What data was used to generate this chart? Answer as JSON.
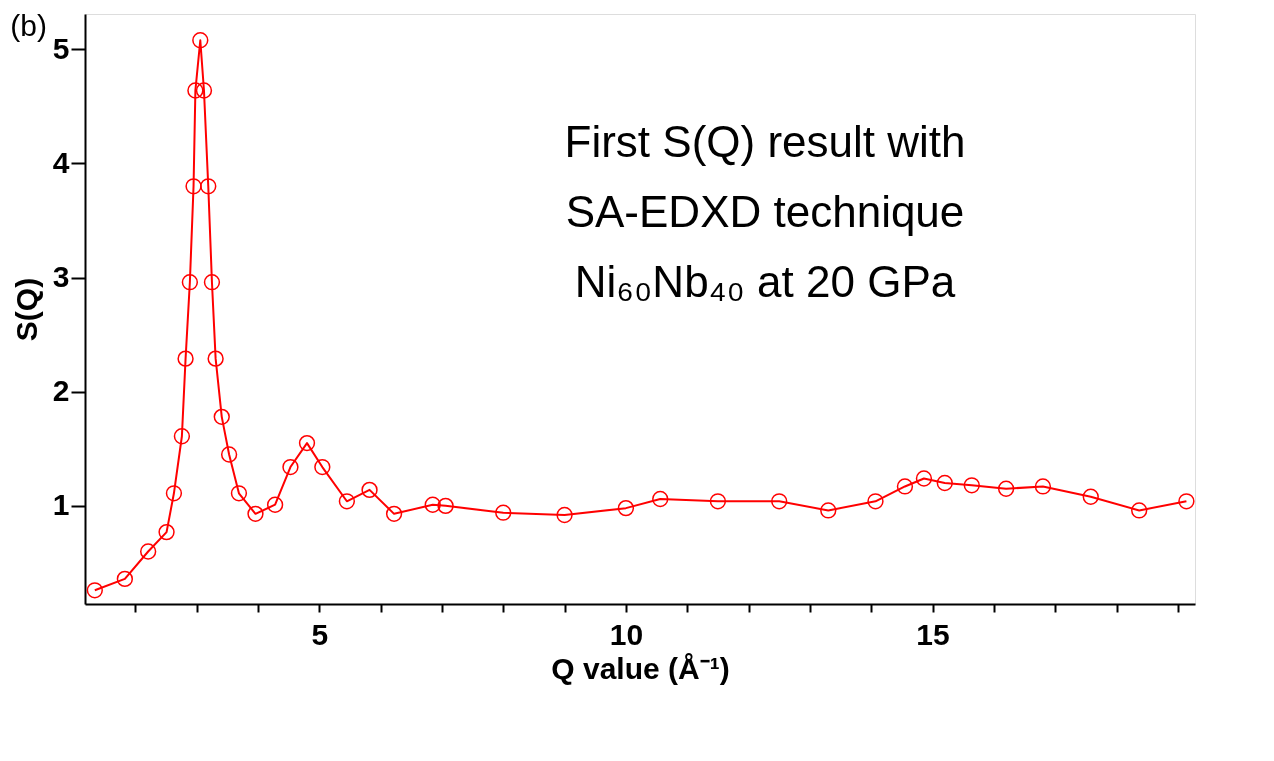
{
  "chart_data": {
    "type": "line",
    "marker": "circle",
    "line_style": "solid",
    "grid": false,
    "xlabel": "Q value (Å⁻¹)",
    "ylabel": "S(Q)",
    "annotations": [
      "(b)",
      "First S(Q) result with",
      "SA-EDXD technique",
      "Ni₆₀Nb₄₀ at 20 GPa"
    ],
    "xlim": [
      1.18,
      19.28
    ],
    "ylim": [
      0.14,
      5.31
    ],
    "xticks": [
      {
        "value": 2,
        "label": null
      },
      {
        "value": 3,
        "label": null
      },
      {
        "value": 4,
        "label": null
      },
      5,
      {
        "value": 6,
        "label": null
      },
      {
        "value": 7,
        "label": null
      },
      {
        "value": 8,
        "label": null
      },
      {
        "value": 9,
        "label": null
      },
      10,
      {
        "value": 11,
        "label": null
      },
      {
        "value": 12,
        "label": null
      },
      {
        "value": 13,
        "label": null
      },
      {
        "value": 14,
        "label": null
      },
      15,
      {
        "value": 16,
        "label": null
      },
      {
        "value": 17,
        "label": null
      },
      {
        "value": 18,
        "label": null
      },
      {
        "value": 19,
        "label": null
      }
    ],
    "yticks": [
      1,
      2,
      3,
      4,
      5
    ],
    "series": [
      {
        "color": "#ff0000",
        "x": [
          1.34,
          1.83,
          2.21,
          2.51,
          2.63,
          2.76,
          2.82,
          2.89,
          2.95,
          2.98,
          3.06,
          3.12,
          3.19,
          3.25,
          3.31,
          3.41,
          3.53,
          3.69,
          3.96,
          4.28,
          4.53,
          4.8,
          5.05,
          5.45,
          5.82,
          6.22,
          6.85,
          7.06,
          8.0,
          9.0,
          10.0,
          10.56,
          11.5,
          12.5,
          13.3,
          14.07,
          14.55,
          14.86,
          15.2,
          15.64,
          16.2,
          16.8,
          17.58,
          18.37,
          19.14
        ],
        "values": [
          0.26,
          0.36,
          0.6,
          0.77,
          1.11,
          1.61,
          2.29,
          2.96,
          3.8,
          4.64,
          5.08,
          4.64,
          3.8,
          2.96,
          2.29,
          1.78,
          1.45,
          1.11,
          0.93,
          1.01,
          1.34,
          1.55,
          1.34,
          1.04,
          1.14,
          0.93,
          1.01,
          1.0,
          0.94,
          0.92,
          0.98,
          1.06,
          1.04,
          1.04,
          0.96,
          1.04,
          1.17,
          1.24,
          1.2,
          1.18,
          1.15,
          1.17,
          1.08,
          0.96,
          1.04
        ]
      }
    ]
  }
}
